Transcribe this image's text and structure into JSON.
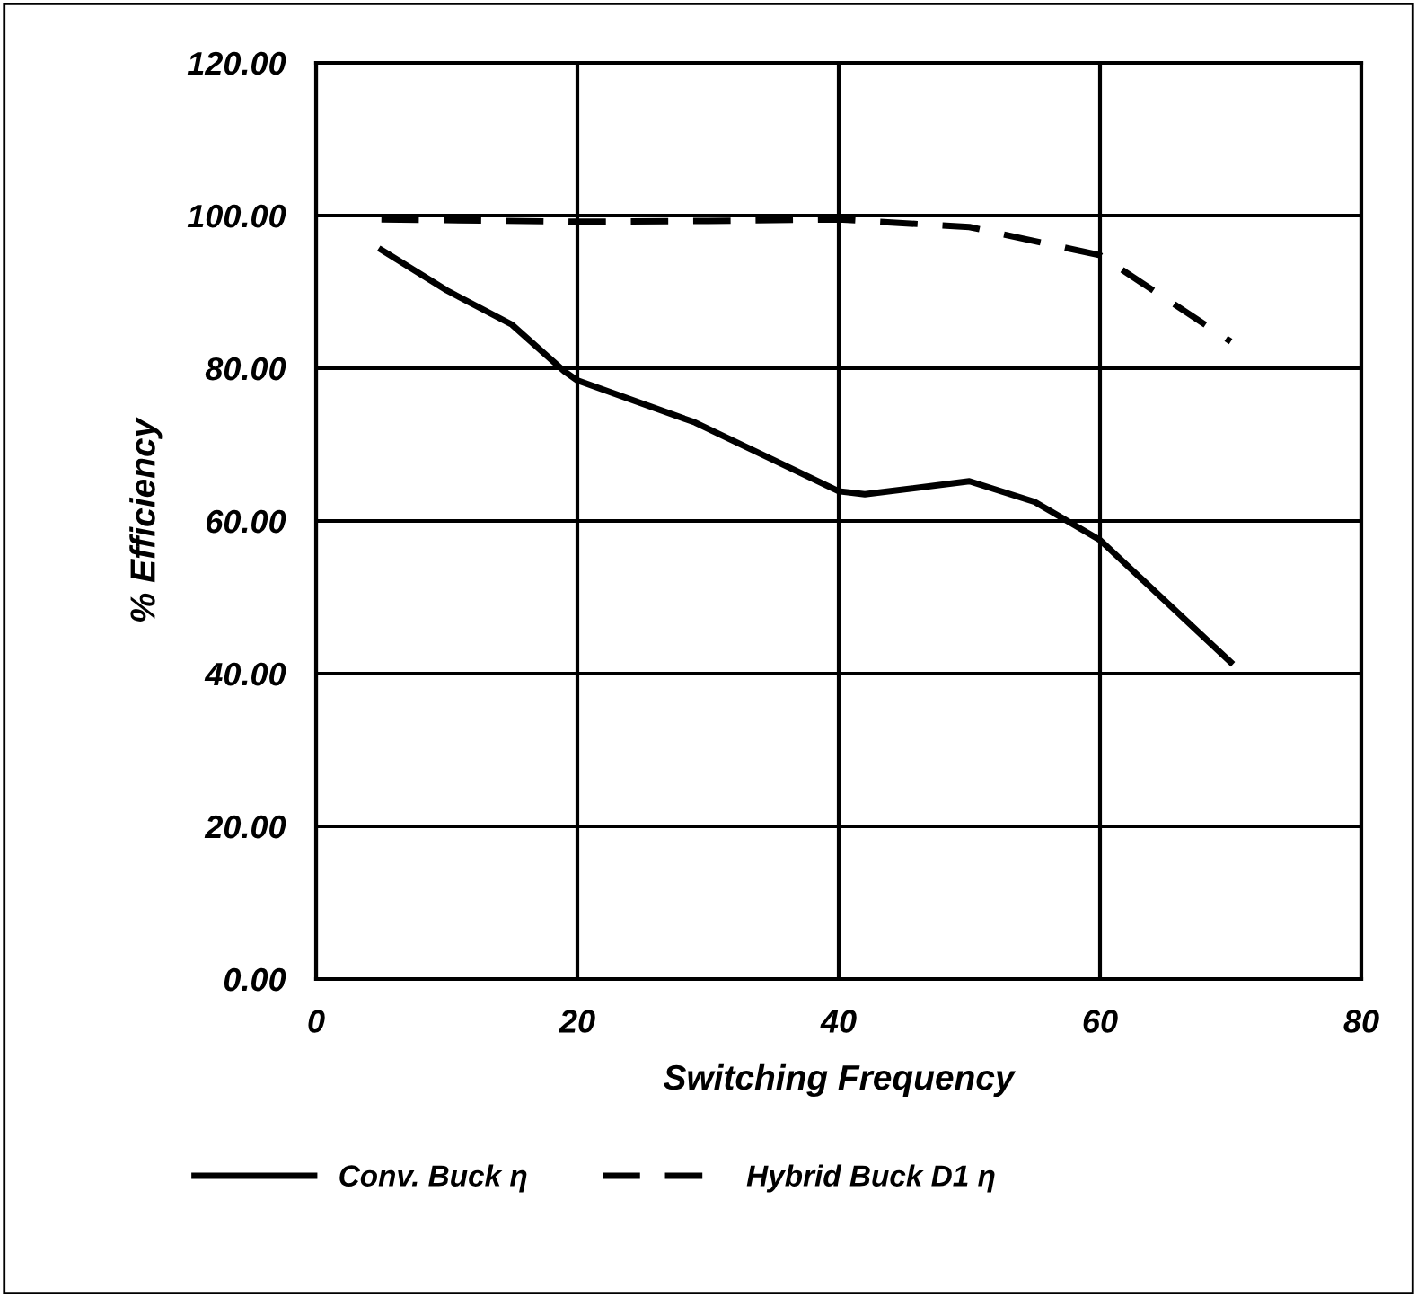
{
  "chart_data": {
    "type": "line",
    "xlabel": "Switching Frequency",
    "ylabel": "% Efficiency",
    "xlim": [
      0,
      80
    ],
    "xticks": [
      0,
      20,
      40,
      60,
      80
    ],
    "ylim": [
      0,
      120
    ],
    "yticks": [
      {
        "value": 0,
        "label": "0.00"
      },
      {
        "value": 20,
        "label": "20.00"
      },
      {
        "value": 40,
        "label": "40.00"
      },
      {
        "value": 60,
        "label": "60.00"
      },
      {
        "value": 80,
        "label": "80.00"
      },
      {
        "value": 100,
        "label": "100.00"
      },
      {
        "value": 120,
        "label": "120.00"
      }
    ],
    "grid": true,
    "legend": "bottom",
    "marker": "none",
    "series": [
      {
        "name": "Conv. Buck η",
        "color": "#000000",
        "line_style": "solid",
        "x": [
          5,
          10,
          15,
          19,
          20,
          29,
          40,
          42,
          50,
          55,
          60,
          65,
          70
        ],
        "values": [
          95.5,
          90.2,
          85.7,
          79.6,
          78.4,
          72.9,
          63.9,
          63.5,
          65.2,
          62.5,
          57.5,
          49.5,
          41.5
        ]
      },
      {
        "name": "Hybrid Buck D1 η",
        "color": "#000000",
        "line_style": "dashed",
        "x": [
          5,
          20,
          30,
          40,
          50,
          60,
          70
        ],
        "values": [
          99.5,
          99.2,
          99.3,
          99.5,
          98.5,
          94.8,
          83.5
        ]
      }
    ]
  }
}
